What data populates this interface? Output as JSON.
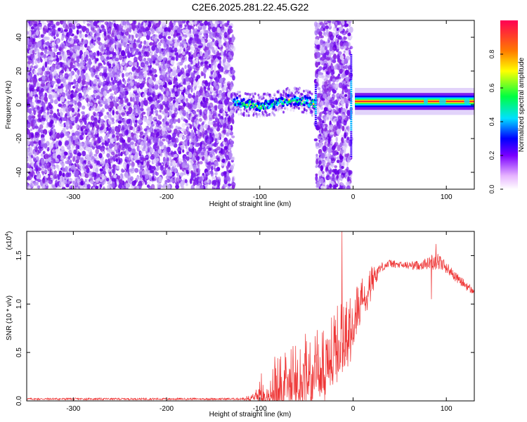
{
  "title": "C2E6.2025.281.22.45.G22",
  "chart_data": [
    {
      "type": "heatmap",
      "title": "C2E6.2025.281.22.45.G22",
      "xlabel": "Height of straight line (km)",
      "ylabel": "Frequency (Hz)",
      "xlim": [
        -350,
        130
      ],
      "ylim": [
        -50,
        50
      ],
      "xticks": [
        -300,
        -200,
        -100,
        0,
        100
      ],
      "xtick_labels": [
        "-300",
        "-200",
        "-100",
        "0",
        "100"
      ],
      "yticks": [
        -40,
        -20,
        0,
        20,
        40
      ],
      "ytick_labels": [
        "-40",
        "-20",
        "0",
        "20",
        "40"
      ],
      "colorbar": {
        "label": "Normalized spectral amplitude",
        "range": [
          0,
          1
        ],
        "ticks": [
          0.0,
          0.2,
          0.4,
          0.6,
          0.8
        ],
        "tick_labels": [
          "0.0",
          "0.2",
          "0.4",
          "0.6",
          "0.8"
        ]
      },
      "regions": [
        {
          "x": [
            -350,
            -128
          ],
          "kind": "noise"
        },
        {
          "x": [
            -128,
            -40
          ],
          "kind": "signal",
          "freq_center": 2
        },
        {
          "x": [
            -40,
            -2
          ],
          "kind": "noise"
        },
        {
          "x": [
            2,
            130
          ],
          "kind": "signal",
          "freq_center": 2
        }
      ]
    },
    {
      "type": "line",
      "xlabel": "Height of straight line (km)",
      "ylabel": "SNR (10 * v/v)",
      "y_scale_label": "(x10",
      "y_scale_exp": "4",
      "y_scale_close": ")",
      "xlim": [
        -350,
        130
      ],
      "ylim": [
        0,
        1.75
      ],
      "xticks": [
        -300,
        -200,
        -100,
        0,
        100
      ],
      "xtick_labels": [
        "-300",
        "-200",
        "-100",
        "0",
        "100"
      ],
      "yticks": [
        0.0,
        0.5,
        1.0,
        1.5
      ],
      "ytick_labels": [
        "0.0",
        "0.5",
        "1.0",
        "1.5"
      ],
      "color": "#ee3333",
      "envelope": {
        "x": [
          -350,
          -120,
          -105,
          -100,
          -90,
          -80,
          -70,
          -60,
          -50,
          -40,
          -30,
          -20,
          -15,
          -10,
          0,
          10,
          20,
          30,
          40,
          50,
          60,
          70,
          80,
          90,
          100,
          110,
          120,
          130
        ],
        "base": [
          0.02,
          0.02,
          0.05,
          0.1,
          0.15,
          0.2,
          0.25,
          0.3,
          0.35,
          0.4,
          0.45,
          0.55,
          0.65,
          0.7,
          0.85,
          1.05,
          1.25,
          1.38,
          1.42,
          1.4,
          1.4,
          1.4,
          1.42,
          1.45,
          1.38,
          1.28,
          1.2,
          1.12
        ],
        "amp": [
          0.01,
          0.01,
          0.04,
          0.18,
          0.25,
          0.3,
          0.32,
          0.34,
          0.35,
          0.38,
          0.4,
          0.4,
          0.4,
          0.35,
          0.3,
          0.22,
          0.15,
          0.05,
          0.04,
          0.04,
          0.04,
          0.05,
          0.06,
          0.1,
          0.06,
          0.05,
          0.05,
          0.04
        ]
      },
      "spikes": [
        {
          "x": -12,
          "y": 1.75
        },
        {
          "x": 89,
          "y": 1.62
        },
        {
          "x": 84,
          "y": 1.05
        }
      ]
    }
  ]
}
